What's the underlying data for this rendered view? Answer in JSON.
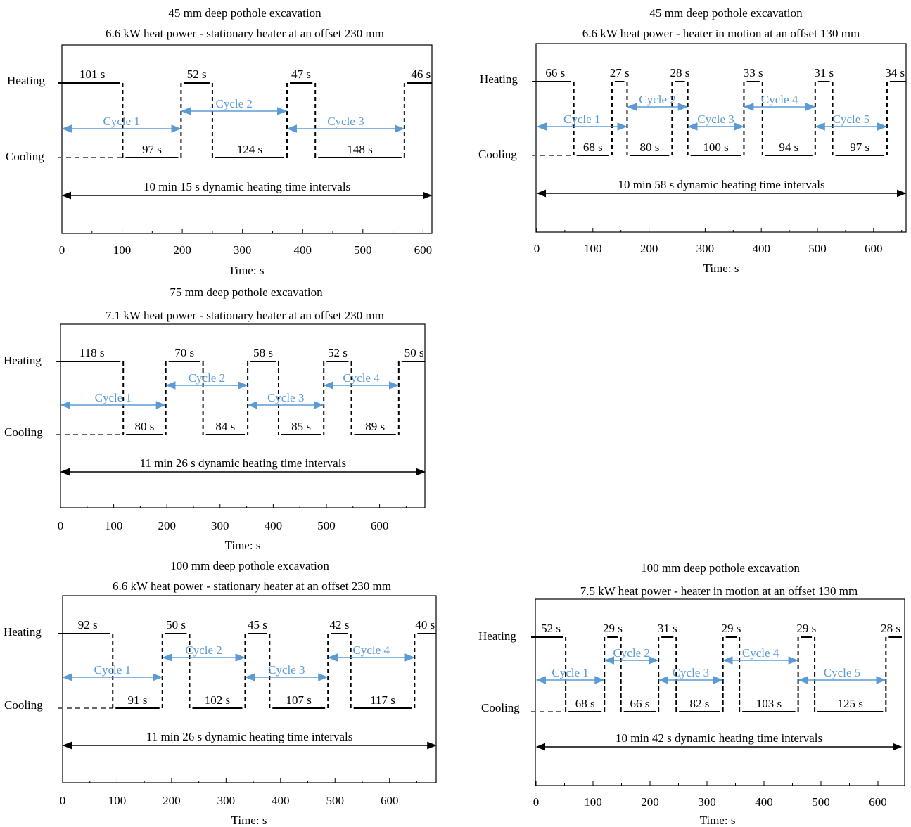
{
  "colors": {
    "signal": "#000000",
    "cycle_arrow": "#5b9bd5",
    "cooling_dash": "#666666"
  },
  "chart_data": [
    {
      "type": "line",
      "title": "45 mm  deep pothole  excavation",
      "subtitle": "6.6 kW heat power - stationary  heater at an offset  230 mm",
      "xlabel": "Time:  s",
      "xlim": [
        0,
        615
      ],
      "xticks": [
        0,
        100,
        200,
        300,
        400,
        500,
        600
      ],
      "states": [
        "Heating",
        "Cooling"
      ],
      "segments": [
        {
          "state": "heating",
          "label": "101 s",
          "start": 0,
          "end": 101
        },
        {
          "state": "cooling",
          "label": "97 s",
          "start": 101,
          "end": 198
        },
        {
          "state": "heating",
          "label": "52 s",
          "start": 198,
          "end": 250
        },
        {
          "state": "cooling",
          "label": "124 s",
          "start": 250,
          "end": 374
        },
        {
          "state": "heating",
          "label": "47 s",
          "start": 374,
          "end": 421
        },
        {
          "state": "cooling",
          "label": "148 s",
          "start": 421,
          "end": 569
        },
        {
          "state": "heating",
          "label": "46 s",
          "start": 569,
          "end": 615
        }
      ],
      "cycles": [
        {
          "label": "Cycle  1",
          "start": 0,
          "end": 198,
          "row": "low"
        },
        {
          "label": "Cycle  2",
          "start": 198,
          "end": 374,
          "row": "high"
        },
        {
          "label": "Cycle  3",
          "start": 374,
          "end": 569,
          "row": "low"
        }
      ],
      "total_label": "10 min  15 s dynamic  heating  time  intervals",
      "total": [
        0,
        615
      ]
    },
    {
      "type": "line",
      "title": "45 mm  deep pothole  excavation",
      "subtitle": "6.6 kW heat power - heater  in  motion  at an offset  130 mm",
      "xlabel": "Time:  s",
      "xlim": [
        0,
        658
      ],
      "xticks": [
        0,
        100,
        200,
        300,
        400,
        500,
        600
      ],
      "states": [
        "Heating",
        "Cooling"
      ],
      "segments": [
        {
          "state": "heating",
          "label": "66 s",
          "start": 0,
          "end": 66
        },
        {
          "state": "cooling",
          "label": "68 s",
          "start": 66,
          "end": 134
        },
        {
          "state": "heating",
          "label": "27 s",
          "start": 134,
          "end": 161
        },
        {
          "state": "cooling",
          "label": "80 s",
          "start": 161,
          "end": 241
        },
        {
          "state": "heating",
          "label": "28 s",
          "start": 241,
          "end": 269
        },
        {
          "state": "cooling",
          "label": "100 s",
          "start": 269,
          "end": 369
        },
        {
          "state": "heating",
          "label": "33 s",
          "start": 369,
          "end": 402
        },
        {
          "state": "cooling",
          "label": "94 s",
          "start": 402,
          "end": 496
        },
        {
          "state": "heating",
          "label": "31 s",
          "start": 496,
          "end": 527
        },
        {
          "state": "cooling",
          "label": "97 s",
          "start": 527,
          "end": 624
        },
        {
          "state": "heating",
          "label": "34 s",
          "start": 624,
          "end": 658
        }
      ],
      "cycles": [
        {
          "label": "Cycle  1",
          "start": 0,
          "end": 161,
          "row": "low"
        },
        {
          "label": "Cycle  2",
          "start": 161,
          "end": 269,
          "row": "high"
        },
        {
          "label": "Cycle  3",
          "start": 269,
          "end": 369,
          "row": "low"
        },
        {
          "label": "Cycle  4",
          "start": 369,
          "end": 496,
          "row": "high"
        },
        {
          "label": "Cycle  5",
          "start": 496,
          "end": 624,
          "row": "low"
        }
      ],
      "total_label": "10 min  58 s dynamic  heating  time  intervals",
      "total": [
        0,
        658
      ]
    },
    {
      "type": "line",
      "title": "75 mm  deep pothole  excavation",
      "subtitle": "7.1 kW heat power - stationary  heater at an offset  230 mm",
      "xlabel": "Time:  s",
      "xlim": [
        0,
        686
      ],
      "xticks": [
        0,
        100,
        200,
        300,
        400,
        500,
        600
      ],
      "states": [
        "Heating",
        "Cooling"
      ],
      "segments": [
        {
          "state": "heating",
          "label": "118 s",
          "start": 0,
          "end": 118
        },
        {
          "state": "cooling",
          "label": "80 s",
          "start": 118,
          "end": 198
        },
        {
          "state": "heating",
          "label": "70 s",
          "start": 198,
          "end": 268
        },
        {
          "state": "cooling",
          "label": "84 s",
          "start": 268,
          "end": 352
        },
        {
          "state": "heating",
          "label": "58 s",
          "start": 352,
          "end": 410
        },
        {
          "state": "cooling",
          "label": "85 s",
          "start": 410,
          "end": 495
        },
        {
          "state": "heating",
          "label": "52 s",
          "start": 495,
          "end": 547
        },
        {
          "state": "cooling",
          "label": "89 s",
          "start": 547,
          "end": 636
        },
        {
          "state": "heating",
          "label": "50 s",
          "start": 636,
          "end": 686
        }
      ],
      "cycles": [
        {
          "label": "Cycle  1",
          "start": 0,
          "end": 198,
          "row": "low"
        },
        {
          "label": "Cycle  2",
          "start": 198,
          "end": 352,
          "row": "high"
        },
        {
          "label": "Cycle  3",
          "start": 352,
          "end": 495,
          "row": "low"
        },
        {
          "label": "Cycle  4",
          "start": 495,
          "end": 636,
          "row": "high"
        }
      ],
      "total_label": "11 min  26 s dynamic  heating  time  intervals",
      "total": [
        0,
        686
      ]
    },
    {
      "type": "line",
      "title": "100 mm  deep pothole  excavation",
      "subtitle": "6.6 kW heat power - stationary  heater at an offset  230 mm",
      "xlabel": "Time:  s",
      "xlim": [
        0,
        686
      ],
      "xticks": [
        0,
        100,
        200,
        300,
        400,
        500,
        600
      ],
      "states": [
        "Heating",
        "Cooling"
      ],
      "segments": [
        {
          "state": "heating",
          "label": "92 s",
          "start": 0,
          "end": 92
        },
        {
          "state": "cooling",
          "label": "91 s",
          "start": 92,
          "end": 183
        },
        {
          "state": "heating",
          "label": "50 s",
          "start": 183,
          "end": 233
        },
        {
          "state": "cooling",
          "label": "102 s",
          "start": 233,
          "end": 335
        },
        {
          "state": "heating",
          "label": "45 s",
          "start": 335,
          "end": 380
        },
        {
          "state": "cooling",
          "label": "107 s",
          "start": 380,
          "end": 487
        },
        {
          "state": "heating",
          "label": "42 s",
          "start": 487,
          "end": 529
        },
        {
          "state": "cooling",
          "label": "117 s",
          "start": 529,
          "end": 646
        },
        {
          "state": "heating",
          "label": "40 s",
          "start": 646,
          "end": 686
        }
      ],
      "cycles": [
        {
          "label": "Cycle  1",
          "start": 0,
          "end": 183,
          "row": "low"
        },
        {
          "label": "Cycle  2",
          "start": 183,
          "end": 335,
          "row": "high"
        },
        {
          "label": "Cycle  3",
          "start": 335,
          "end": 487,
          "row": "low"
        },
        {
          "label": "Cycle  4",
          "start": 487,
          "end": 646,
          "row": "high"
        }
      ],
      "total_label": "11 min  26 s dynamic  heating  time  intervals",
      "total": [
        0,
        686
      ]
    },
    {
      "type": "line",
      "title": "100 mm  deep pothole  excavation",
      "subtitle": "7.5 kW heat power - heater  in  motion  at an offset  130 mm",
      "xlabel": "Time:  s",
      "xlim": [
        0,
        642
      ],
      "xticks": [
        0,
        100,
        200,
        300,
        400,
        500,
        600
      ],
      "states": [
        "Heating",
        "Cooling"
      ],
      "segments": [
        {
          "state": "heating",
          "label": "52 s",
          "start": 0,
          "end": 52
        },
        {
          "state": "cooling",
          "label": "68 s",
          "start": 52,
          "end": 120
        },
        {
          "state": "heating",
          "label": "29 s",
          "start": 120,
          "end": 149
        },
        {
          "state": "cooling",
          "label": "66 s",
          "start": 149,
          "end": 215
        },
        {
          "state": "heating",
          "label": "31 s",
          "start": 215,
          "end": 246
        },
        {
          "state": "cooling",
          "label": "82 s",
          "start": 246,
          "end": 328
        },
        {
          "state": "heating",
          "label": "29 s",
          "start": 328,
          "end": 357
        },
        {
          "state": "cooling",
          "label": "103 s",
          "start": 357,
          "end": 460
        },
        {
          "state": "heating",
          "label": "29 s",
          "start": 460,
          "end": 489
        },
        {
          "state": "cooling",
          "label": "125 s",
          "start": 489,
          "end": 614
        },
        {
          "state": "heating",
          "label": "28 s",
          "start": 614,
          "end": 642
        }
      ],
      "cycles": [
        {
          "label": "Cycle  1",
          "start": 0,
          "end": 120,
          "row": "low"
        },
        {
          "label": "Cycle  2",
          "start": 120,
          "end": 215,
          "row": "high"
        },
        {
          "label": "Cycle  3",
          "start": 215,
          "end": 328,
          "row": "low"
        },
        {
          "label": "Cycle  4",
          "start": 328,
          "end": 460,
          "row": "high"
        },
        {
          "label": "Cycle  5",
          "start": 460,
          "end": 614,
          "row": "low"
        }
      ],
      "total_label": "10 min  42 s dynamic  heating  time  intervals",
      "total": [
        0,
        642
      ]
    }
  ]
}
